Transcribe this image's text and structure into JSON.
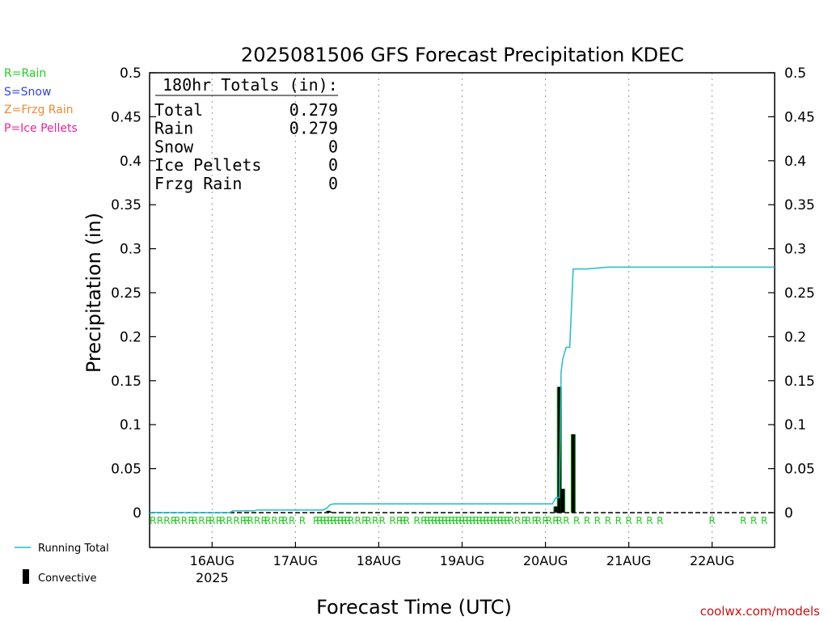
{
  "chart_data": {
    "type": "bar",
    "title": "2025081506 GFS Forecast Precipitation KDEC",
    "xlabel": "Forecast Time (UTC)",
    "ylabel": "Precipitation (in)",
    "ylim": [
      0,
      0.5
    ],
    "y_ticks": [
      "0",
      "0.05",
      "0.1",
      "0.15",
      "0.2",
      "0.25",
      "0.3",
      "0.35",
      "0.4",
      "0.45",
      "0.5"
    ],
    "x_range_hours": [
      0,
      180
    ],
    "x_ticks": [
      {
        "hour": 18,
        "label": "16AUG",
        "sublabel": "2025"
      },
      {
        "hour": 42,
        "label": "17AUG",
        "sublabel": ""
      },
      {
        "hour": 66,
        "label": "18AUG",
        "sublabel": ""
      },
      {
        "hour": 90,
        "label": "19AUG",
        "sublabel": ""
      },
      {
        "hour": 114,
        "label": "20AUG",
        "sublabel": ""
      },
      {
        "hour": 138,
        "label": "21AUG",
        "sublabel": ""
      },
      {
        "hour": 162,
        "label": "22AUG",
        "sublabel": ""
      }
    ],
    "grid": "vertical dotted at day boundaries",
    "legend_top": [
      {
        "text": "R=Rain",
        "color": "#22cc22"
      },
      {
        "text": "S=Snow",
        "color": "#3344dd"
      },
      {
        "text": "Z=Frzg Rain",
        "color": "#ee8833"
      },
      {
        "text": "P=Ice Pellets",
        "color": "#ee2299"
      }
    ],
    "legend_bottom": [
      {
        "text": "Running Total",
        "color": "#22bbcc",
        "kind": "line"
      },
      {
        "text": "Convective",
        "color": "#000000",
        "kind": "bar"
      }
    ],
    "totals": {
      "heading": "180hr Totals (in):",
      "rows": [
        {
          "label": "Total",
          "value": "0.279"
        },
        {
          "label": "Rain",
          "value": "0.279"
        },
        {
          "label": "Snow",
          "value": "0"
        },
        {
          "label": "Ice Pellets",
          "value": "0"
        },
        {
          "label": "Frzg Rain",
          "value": "0"
        }
      ]
    },
    "series": [
      {
        "name": "Running Total",
        "color": "#22bbcc",
        "x": [
          0,
          23,
          24,
          30,
          31,
          50,
          51,
          51.5,
          52,
          53,
          116,
          117,
          118,
          118.5,
          119,
          120,
          120.5,
          121,
          122,
          123,
          126,
          132,
          180
        ],
        "y": [
          0,
          0,
          0.002,
          0.002,
          0.003,
          0.003,
          0.005,
          0.007,
          0.009,
          0.01,
          0.01,
          0.017,
          0.017,
          0.16,
          0.175,
          0.188,
          0.188,
          0.188,
          0.277,
          0.277,
          0.277,
          0.279,
          0.279
        ]
      },
      {
        "name": "Convective",
        "color": "#000000",
        "x": [
          51.5,
          52,
          117,
          118,
          119,
          122
        ],
        "values": [
          0.002,
          0.001,
          0.007,
          0.143,
          0.027,
          0.089
        ]
      },
      {
        "name": "Total",
        "color": "#009900",
        "x": [
          51.5,
          52,
          117,
          118,
          119,
          122
        ],
        "values": [
          0.002,
          0.001,
          0.007,
          0.143,
          0.027,
          0.089
        ]
      }
    ],
    "precip_type_markers": {
      "letter": "R",
      "color": "#22cc22",
      "hours": [
        1,
        3,
        5,
        7,
        8,
        10,
        12,
        13,
        15,
        17,
        18,
        20,
        21,
        23,
        25,
        27,
        28,
        29,
        31,
        33,
        34,
        36,
        38,
        39,
        41,
        44,
        48,
        49,
        50,
        51,
        52,
        53,
        54,
        55,
        56,
        57,
        58,
        60,
        62,
        63,
        65,
        67,
        70,
        72,
        73,
        74,
        77,
        79,
        80,
        81,
        82,
        83,
        84,
        85,
        86,
        87,
        88,
        89,
        90,
        91,
        92,
        93,
        94,
        95,
        96,
        97,
        98,
        99,
        100,
        101,
        102,
        103,
        104,
        106,
        108,
        109,
        111,
        112,
        114,
        115,
        117,
        118,
        120,
        123,
        126,
        129,
        132,
        135,
        138,
        141,
        144,
        147,
        162,
        171,
        174,
        177
      ]
    }
  },
  "footer": {
    "watermark": "coolwx.com/models"
  }
}
